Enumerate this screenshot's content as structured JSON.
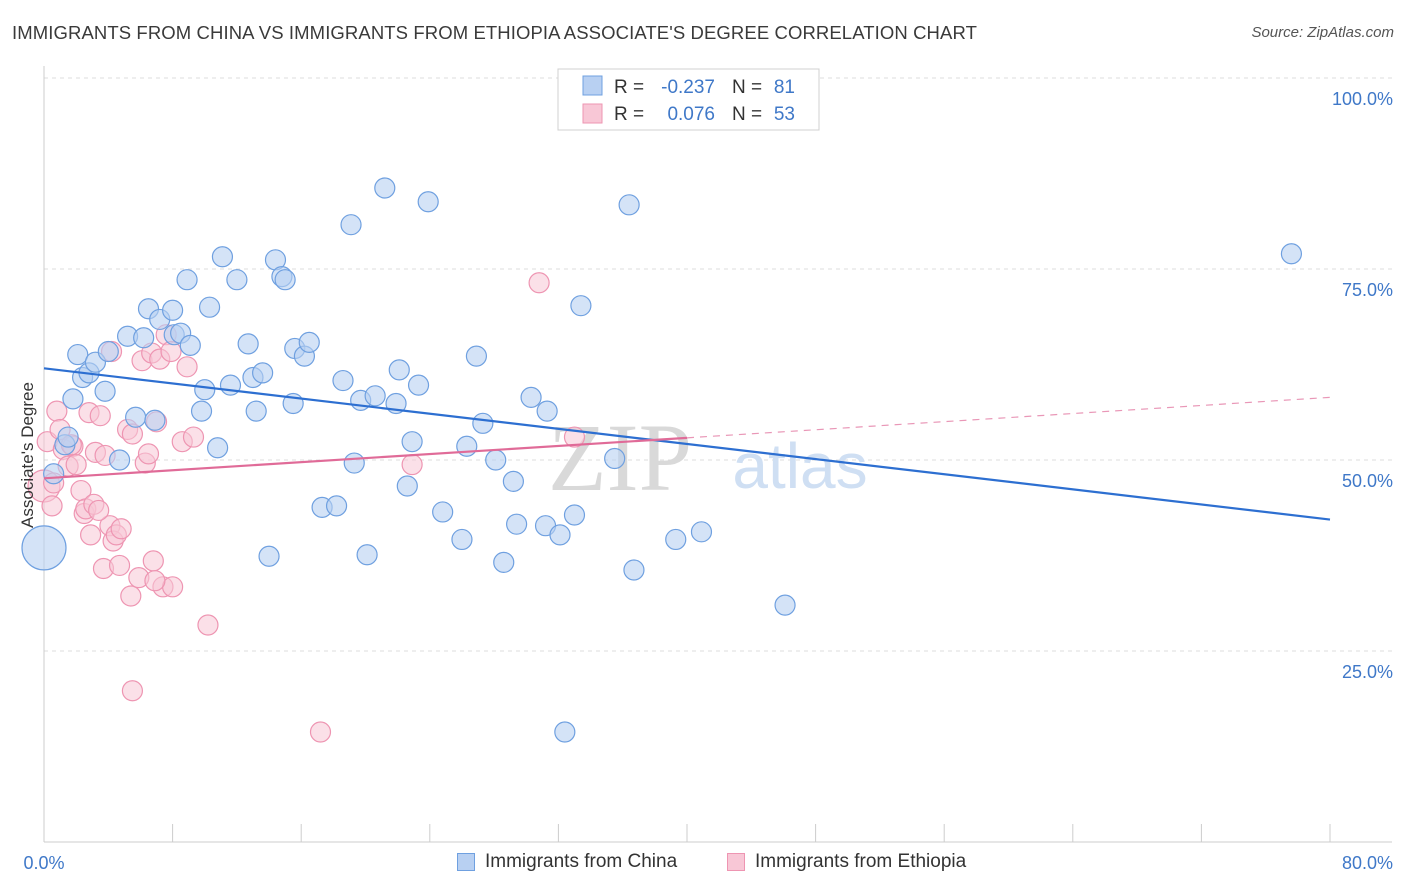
{
  "header": {
    "title": "IMMIGRANTS FROM CHINA VS IMMIGRANTS FROM ETHIOPIA ASSOCIATE'S DEGREE CORRELATION CHART",
    "source": "Source: ZipAtlas.com"
  },
  "colors": {
    "china": "#6fa0e0",
    "china_fill": "#b8d0f2",
    "china_line": "#2d6fd1",
    "ethiopia": "#ee95b2",
    "ethiopia_fill": "#f8c7d6",
    "ethiopia_line": "#e06b98",
    "axis_label": "#3f78c8",
    "grid": "#dcdcdc"
  },
  "stats": {
    "china": {
      "r_label": "R =",
      "r": "-0.237",
      "n_label": "N =",
      "n": "81"
    },
    "ethiopia": {
      "r_label": "R =",
      "r": "0.076",
      "n_label": "N =",
      "n": "53"
    }
  },
  "watermark": {
    "zip": "ZIP",
    "atlas": "atlas"
  },
  "chart_data": {
    "type": "scatter",
    "title": "IMMIGRANTS FROM CHINA VS IMMIGRANTS FROM ETHIOPIA ASSOCIATE'S DEGREE CORRELATION CHART",
    "xlabel": "",
    "ylabel": "Associate's Degree",
    "xlim": [
      0,
      80
    ],
    "ylim": [
      0,
      100
    ],
    "x_tick_labels": [
      "0.0%",
      "80.0%"
    ],
    "y_ticks": [
      25,
      50,
      75,
      100
    ],
    "y_tick_labels": [
      "25.0%",
      "50.0%",
      "75.0%",
      "100.0%"
    ],
    "grid": true,
    "legend_position": "bottom",
    "series": [
      {
        "name": "Immigrants from China",
        "trend": {
          "x": [
            0,
            80
          ],
          "y": [
            62.0,
            42.2
          ]
        },
        "points": [
          [
            0.0,
            38.5,
            22
          ],
          [
            0.6,
            48.2,
            10
          ],
          [
            1.3,
            52.0,
            10
          ],
          [
            1.5,
            53.0,
            10
          ],
          [
            1.8,
            58.0,
            10
          ],
          [
            2.1,
            63.8,
            10
          ],
          [
            2.4,
            60.8,
            10
          ],
          [
            2.8,
            61.4,
            10
          ],
          [
            3.2,
            62.8,
            10
          ],
          [
            3.8,
            59.0,
            10
          ],
          [
            4.0,
            64.2,
            10
          ],
          [
            4.7,
            50.0,
            10
          ],
          [
            5.2,
            66.2,
            10
          ],
          [
            5.7,
            55.6,
            10
          ],
          [
            6.2,
            66.0,
            10
          ],
          [
            6.5,
            69.8,
            10
          ],
          [
            6.9,
            55.2,
            10
          ],
          [
            7.2,
            68.4,
            10
          ],
          [
            8.1,
            66.4,
            10
          ],
          [
            8.0,
            69.6,
            10
          ],
          [
            8.5,
            66.6,
            10
          ],
          [
            8.9,
            73.6,
            10
          ],
          [
            9.1,
            65.0,
            10
          ],
          [
            9.8,
            56.4,
            10
          ],
          [
            10.0,
            59.2,
            10
          ],
          [
            10.3,
            70.0,
            10
          ],
          [
            10.8,
            51.6,
            10
          ],
          [
            11.1,
            76.6,
            10
          ],
          [
            11.6,
            59.8,
            10
          ],
          [
            12.0,
            73.6,
            10
          ],
          [
            12.7,
            65.2,
            10
          ],
          [
            13.0,
            60.8,
            10
          ],
          [
            13.2,
            56.4,
            10
          ],
          [
            13.6,
            61.4,
            10
          ],
          [
            14.0,
            37.4,
            10
          ],
          [
            14.4,
            76.2,
            10
          ],
          [
            14.8,
            74.0,
            10
          ],
          [
            15.0,
            73.6,
            10
          ],
          [
            15.5,
            57.4,
            10
          ],
          [
            15.6,
            64.6,
            10
          ],
          [
            16.2,
            63.6,
            10
          ],
          [
            16.5,
            65.4,
            10
          ],
          [
            17.3,
            43.8,
            10
          ],
          [
            18.2,
            44.0,
            10
          ],
          [
            18.6,
            60.4,
            10
          ],
          [
            19.1,
            80.8,
            10
          ],
          [
            19.3,
            49.6,
            10
          ],
          [
            19.7,
            57.8,
            10
          ],
          [
            20.1,
            37.6,
            10
          ],
          [
            20.6,
            58.4,
            10
          ],
          [
            21.2,
            85.6,
            10
          ],
          [
            21.9,
            57.4,
            10
          ],
          [
            22.1,
            61.8,
            10
          ],
          [
            22.6,
            46.6,
            10
          ],
          [
            22.9,
            52.4,
            10
          ],
          [
            23.3,
            59.8,
            10
          ],
          [
            23.9,
            83.8,
            10
          ],
          [
            24.8,
            43.2,
            10
          ],
          [
            26.0,
            39.6,
            10
          ],
          [
            26.3,
            51.8,
            10
          ],
          [
            26.9,
            63.6,
            10
          ],
          [
            27.3,
            54.8,
            10
          ],
          [
            28.1,
            50.0,
            10
          ],
          [
            28.6,
            36.6,
            10
          ],
          [
            29.2,
            47.2,
            10
          ],
          [
            29.4,
            41.6,
            10
          ],
          [
            30.3,
            58.2,
            10
          ],
          [
            31.2,
            41.4,
            10
          ],
          [
            31.3,
            56.4,
            10
          ],
          [
            32.1,
            40.2,
            10
          ],
          [
            32.4,
            14.4,
            10
          ],
          [
            33.0,
            42.8,
            10
          ],
          [
            33.4,
            70.2,
            10
          ],
          [
            35.5,
            50.2,
            10
          ],
          [
            36.4,
            83.4,
            10
          ],
          [
            36.7,
            35.6,
            10
          ],
          [
            39.3,
            39.6,
            10
          ],
          [
            40.9,
            40.6,
            10
          ],
          [
            46.1,
            31.0,
            10
          ],
          [
            77.6,
            77.0,
            10
          ]
        ]
      },
      {
        "name": "Immigrants from Ethiopia",
        "trend": {
          "x": [
            0,
            40
          ],
          "y": [
            47.6,
            52.9
          ]
        },
        "dashed_extension": {
          "x": [
            40,
            80
          ],
          "y": [
            52.9,
            58.2
          ]
        },
        "points": [
          [
            0.0,
            46.6,
            16
          ],
          [
            0.2,
            52.4,
            10
          ],
          [
            0.6,
            47.0,
            10
          ],
          [
            0.8,
            56.4,
            10
          ],
          [
            1.0,
            54.0,
            10
          ],
          [
            1.2,
            51.4,
            10
          ],
          [
            1.5,
            49.2,
            10
          ],
          [
            1.8,
            51.8,
            10
          ],
          [
            2.0,
            49.4,
            10
          ],
          [
            2.3,
            46.0,
            10
          ],
          [
            2.5,
            43.0,
            10
          ],
          [
            2.6,
            43.6,
            10
          ],
          [
            2.8,
            56.2,
            10
          ],
          [
            2.9,
            40.2,
            10
          ],
          [
            3.2,
            51.0,
            10
          ],
          [
            3.1,
            44.2,
            10
          ],
          [
            3.5,
            55.8,
            10
          ],
          [
            3.7,
            35.8,
            10
          ],
          [
            3.8,
            50.6,
            10
          ],
          [
            4.1,
            41.4,
            10
          ],
          [
            4.2,
            64.2,
            10
          ],
          [
            4.3,
            39.4,
            10
          ],
          [
            4.5,
            40.2,
            10
          ],
          [
            4.7,
            36.2,
            10
          ],
          [
            4.8,
            41.0,
            10
          ],
          [
            5.2,
            54.0,
            10
          ],
          [
            5.4,
            32.2,
            10
          ],
          [
            5.5,
            53.4,
            10
          ],
          [
            5.5,
            19.8,
            10
          ],
          [
            5.9,
            34.6,
            10
          ],
          [
            6.1,
            63.0,
            10
          ],
          [
            6.3,
            49.6,
            10
          ],
          [
            6.5,
            50.8,
            10
          ],
          [
            6.7,
            64.0,
            10
          ],
          [
            6.8,
            36.8,
            10
          ],
          [
            7.0,
            55.0,
            10
          ],
          [
            7.2,
            63.2,
            10
          ],
          [
            7.4,
            33.4,
            10
          ],
          [
            7.6,
            66.4,
            10
          ],
          [
            7.9,
            64.2,
            10
          ],
          [
            8.0,
            33.4,
            10
          ],
          [
            8.6,
            52.4,
            10
          ],
          [
            8.9,
            62.2,
            10
          ],
          [
            9.3,
            53.0,
            10
          ],
          [
            10.2,
            28.4,
            10
          ],
          [
            17.2,
            14.4,
            10
          ],
          [
            22.9,
            49.4,
            10
          ],
          [
            30.8,
            73.2,
            10
          ],
          [
            33.0,
            53.0,
            10
          ],
          [
            0.5,
            44.0,
            10
          ],
          [
            1.7,
            52.0,
            10
          ],
          [
            3.4,
            43.4,
            10
          ],
          [
            6.9,
            34.2,
            10
          ]
        ]
      }
    ]
  },
  "legend": {
    "china": "Immigrants from China",
    "ethiopia": "Immigrants from Ethiopia"
  }
}
